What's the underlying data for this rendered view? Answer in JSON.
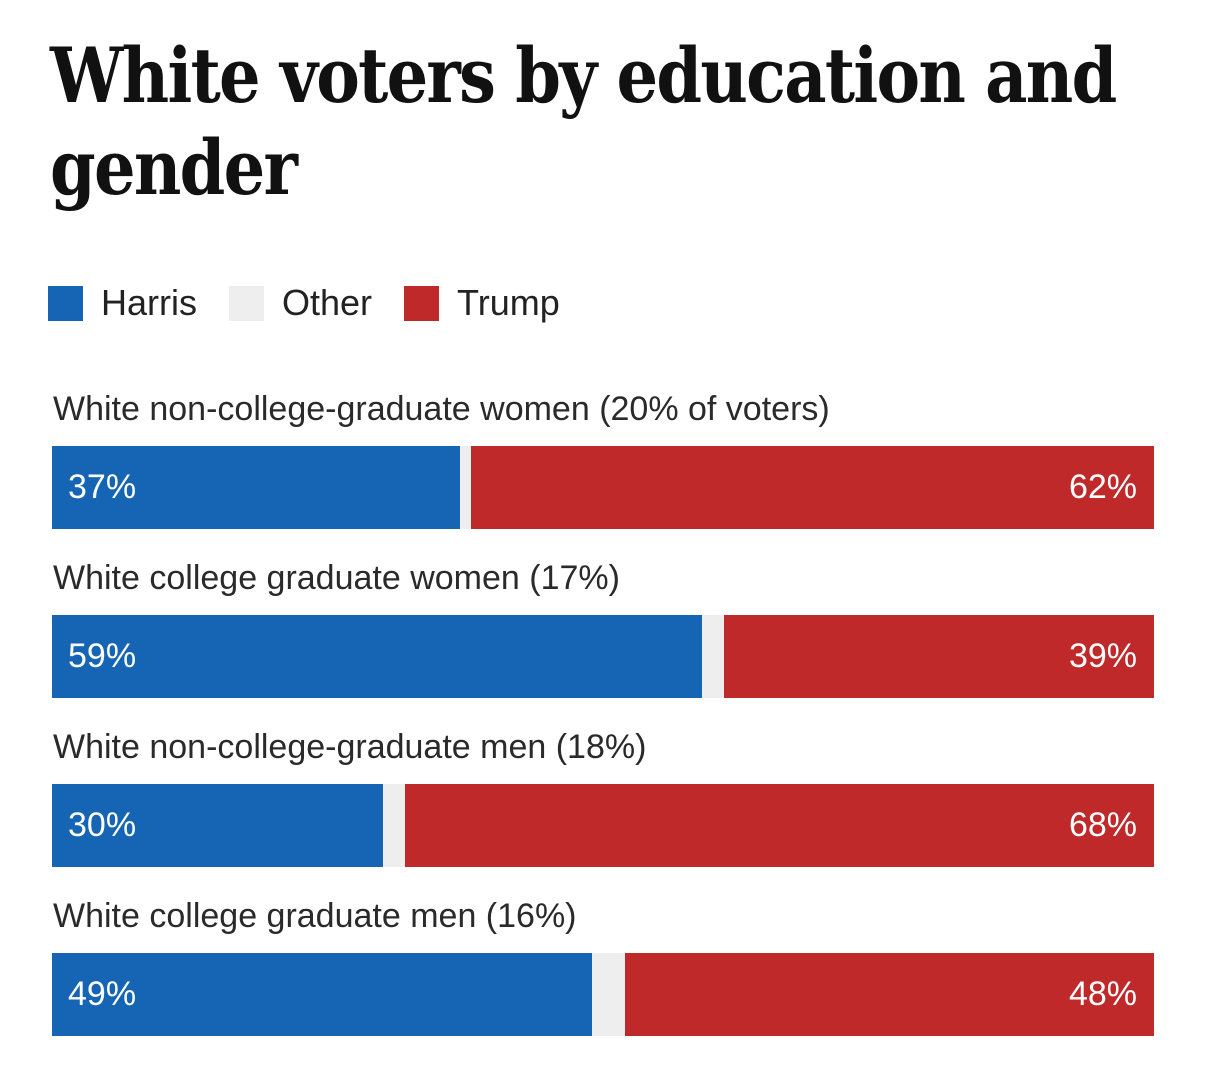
{
  "chart_data": {
    "type": "bar",
    "orientation": "horizontal-stacked",
    "title": "White voters by education and gender",
    "legend": [
      {
        "name": "Harris",
        "color": "#1565b4"
      },
      {
        "name": "Other",
        "color": "#eeeeee"
      },
      {
        "name": "Trump",
        "color": "#c0292a"
      }
    ],
    "legend_placement": "top-left",
    "categories": [
      "White non-college-graduate women (20% of voters)",
      "White college graduate women (17%)",
      "White non-college-graduate men (18%)",
      "White college graduate men (16%)"
    ],
    "series": [
      {
        "name": "Harris",
        "values": [
          37,
          59,
          30,
          49
        ],
        "labels": [
          "37%",
          "59%",
          "30%",
          "49%"
        ]
      },
      {
        "name": "Other",
        "values": [
          1,
          2,
          2,
          3
        ]
      },
      {
        "name": "Trump",
        "values": [
          62,
          39,
          68,
          48
        ],
        "labels": [
          "62%",
          "39%",
          "68%",
          "48%"
        ]
      }
    ],
    "xlim": [
      0,
      100
    ],
    "xlabel": "",
    "ylabel": "",
    "grid": false
  }
}
